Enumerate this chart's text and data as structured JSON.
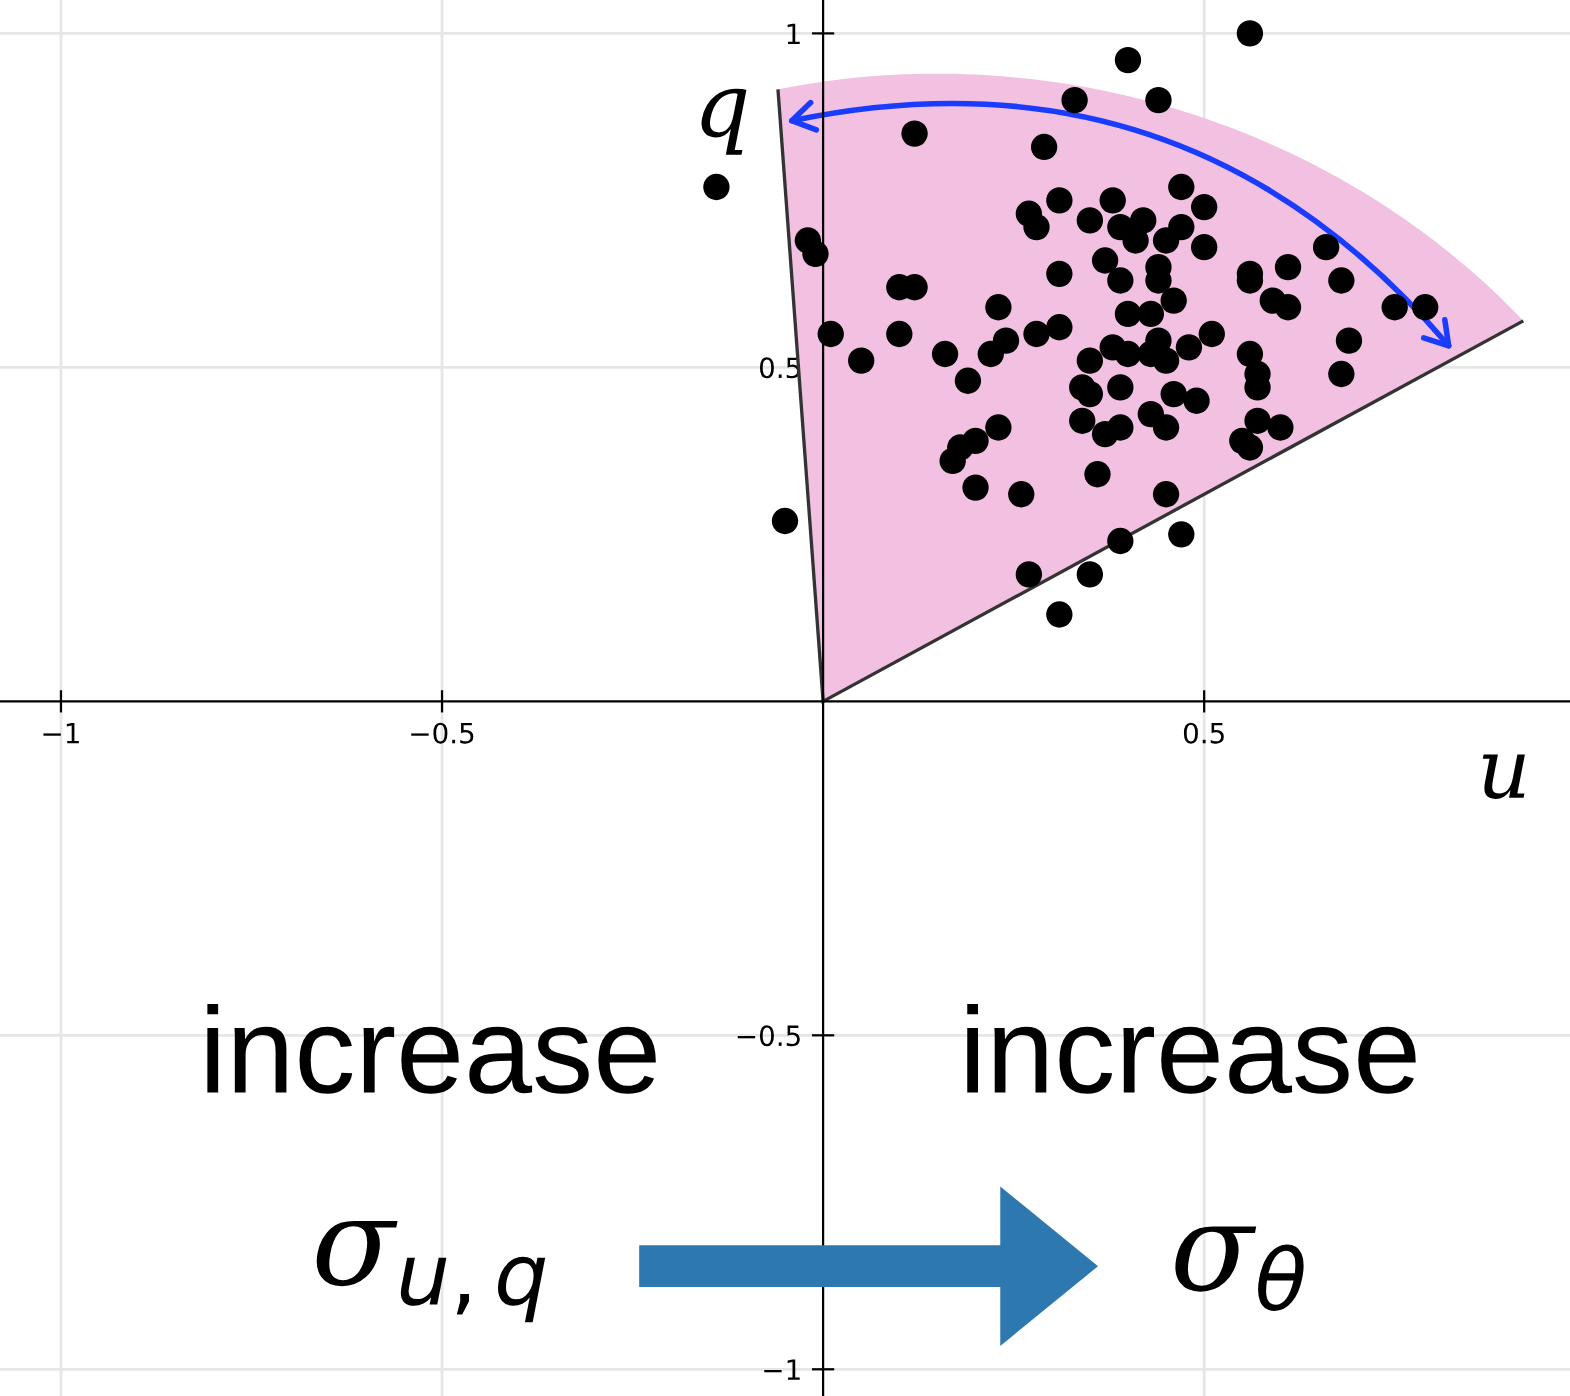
{
  "chart_data": {
    "type": "scatter",
    "xlabel": "u",
    "ylabel": "q",
    "annotations": [
      "increase",
      "increase",
      "σ$_{u,q}$",
      "σ$_{θ}$"
    ],
    "series": [
      {
        "color": "#000000",
        "x": [
          0.4,
          0.33,
          0.12,
          0.29,
          -0.14,
          0.31,
          0.27,
          0.28,
          0.38,
          -0.02,
          -0.01,
          0.35,
          0.37,
          0.39,
          0.31,
          0.1,
          0.12,
          0.39,
          0.23,
          0.4,
          0.01,
          0.05,
          0.1,
          0.16,
          0.19,
          0.24,
          0.22,
          0.28,
          0.31,
          0.35,
          0.38,
          0.34,
          0.35,
          0.39,
          0.34,
          0.37,
          0.39,
          0.23,
          0.2,
          0.18,
          0.17,
          0.2,
          0.26,
          0.36,
          -0.05,
          0.27,
          0.35,
          0.39,
          0.31,
          0.56,
          0.44,
          0.47,
          0.5,
          0.42,
          0.47,
          0.45,
          0.41,
          0.5,
          0.66,
          0.44,
          0.44,
          0.56,
          0.56,
          0.61,
          0.68,
          0.59,
          0.61,
          0.46,
          0.43,
          0.75,
          0.79,
          0.51,
          0.69,
          0.44,
          0.48,
          0.43,
          0.45,
          0.4,
          0.56,
          0.57,
          0.57,
          0.68,
          0.46,
          0.49,
          0.43,
          0.45,
          0.57,
          0.6,
          0.55,
          0.56,
          0.45,
          0.47
        ],
        "values": [
          0.96,
          0.9,
          0.85,
          0.83,
          0.77,
          0.75,
          0.73,
          0.71,
          0.75,
          0.69,
          0.67,
          0.72,
          0.66,
          0.71,
          0.64,
          0.62,
          0.62,
          0.63,
          0.59,
          0.58,
          0.55,
          0.51,
          0.55,
          0.52,
          0.48,
          0.54,
          0.52,
          0.55,
          0.56,
          0.51,
          0.53,
          0.47,
          0.46,
          0.47,
          0.42,
          0.4,
          0.41,
          0.41,
          0.39,
          0.38,
          0.36,
          0.32,
          0.31,
          0.34,
          0.27,
          0.19,
          0.19,
          0.24,
          0.13,
          1.0,
          0.9,
          0.77,
          0.74,
          0.72,
          0.71,
          0.69,
          0.69,
          0.68,
          0.68,
          0.65,
          0.63,
          0.64,
          0.63,
          0.65,
          0.63,
          0.6,
          0.59,
          0.6,
          0.58,
          0.59,
          0.59,
          0.55,
          0.54,
          0.54,
          0.53,
          0.52,
          0.51,
          0.52,
          0.52,
          0.49,
          0.47,
          0.49,
          0.46,
          0.45,
          0.43,
          0.41,
          0.42,
          0.41,
          0.39,
          0.38,
          0.31,
          0.25
        ]
      }
    ],
    "xlim": [
      -1.08,
      0.98
    ],
    "ylim": [
      -1.04,
      1.05
    ],
    "xticks": [
      {
        "value": -1,
        "label": "−1"
      },
      {
        "value": -0.5,
        "label": "−0.5"
      },
      0.5
    ],
    "yticks": [
      {
        "value": -1,
        "label": "−1"
      },
      {
        "value": -0.5,
        "label": "−0.5"
      },
      0.5,
      1
    ],
    "grid": true,
    "marker": "circle",
    "legend": false
  }
}
